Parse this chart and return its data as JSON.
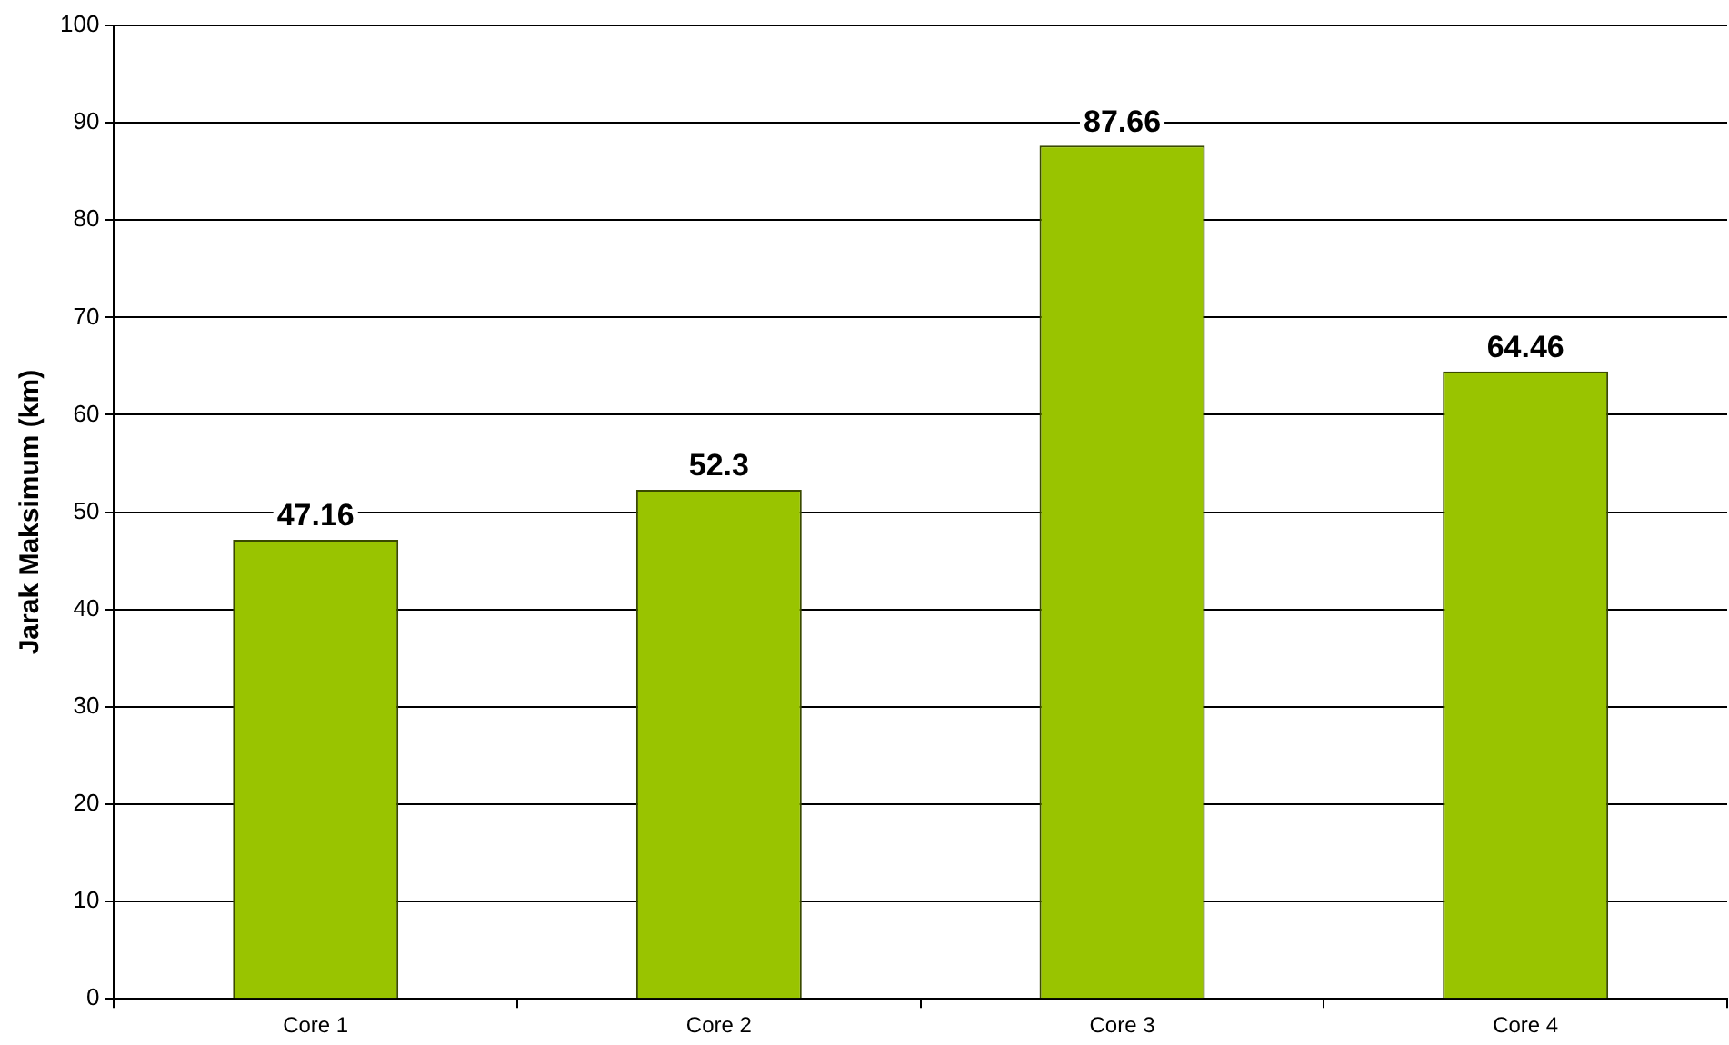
{
  "chart_data": {
    "type": "bar",
    "ylabel": "Jarak Maksimum (km)",
    "categories": [
      "Core 1",
      "Core 2",
      "Core 3",
      "Core 4"
    ],
    "values": [
      47.16,
      52.3,
      87.66,
      64.46
    ],
    "color": "#99c400",
    "ylim": [
      0,
      100
    ],
    "yticks": [
      0,
      10,
      20,
      30,
      40,
      50,
      60,
      70,
      80,
      90,
      100
    ],
    "grid": "y",
    "data_labels": true
  }
}
